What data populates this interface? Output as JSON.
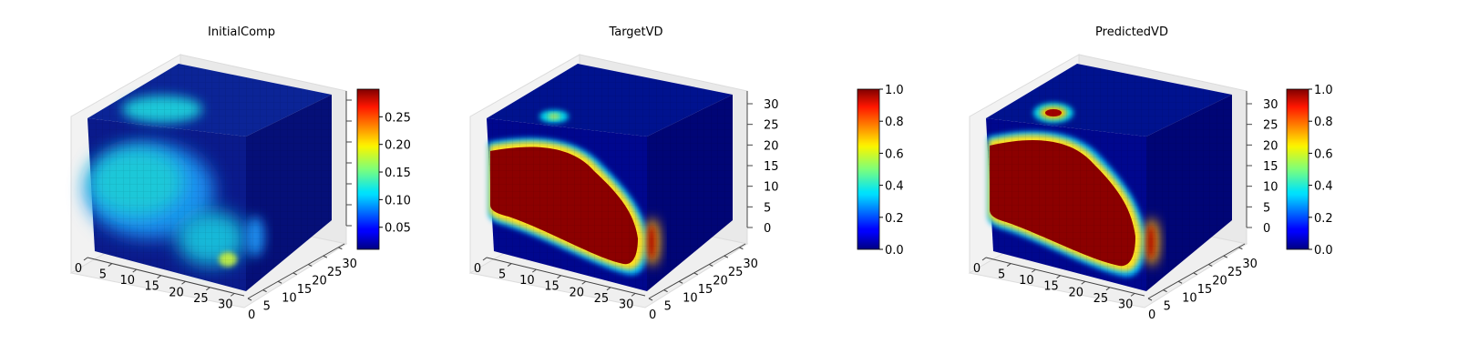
{
  "chart_data": [
    {
      "type": "heatmap",
      "title": "InitialComp",
      "axes_3d": true,
      "x_ticks": [
        0,
        5,
        10,
        15,
        20,
        25,
        30
      ],
      "y_ticks": [
        0,
        5,
        10,
        15,
        20,
        25,
        30
      ],
      "z_ticks": [],
      "colorbar": {
        "colormap": "jet",
        "range": [
          0.01,
          0.3
        ],
        "ticks": [
          "0.05",
          "0.10",
          "0.15",
          "0.20",
          "0.25"
        ]
      },
      "colors": {
        "background": "#0a1a8c",
        "blob_light": "#1ec8d8",
        "blob_mid": "#1f8ff0",
        "hot_spot": "#b8e84a"
      }
    },
    {
      "type": "heatmap",
      "title": "TargetVD",
      "axes_3d": true,
      "x_ticks": [
        0,
        5,
        10,
        15,
        20,
        25,
        30
      ],
      "y_ticks": [
        0,
        5,
        10,
        15,
        20,
        25,
        30
      ],
      "z_ticks": [
        0,
        5,
        10,
        15,
        20,
        25,
        30
      ],
      "colorbar": {
        "colormap": "jet",
        "range": [
          0.0,
          1.0
        ],
        "ticks": [
          "0.0",
          "0.2",
          "0.4",
          "0.6",
          "0.8",
          "1.0"
        ]
      },
      "colors": {
        "background": "#00078e",
        "core": "#8c0000",
        "edge": "#ffe020"
      }
    },
    {
      "type": "heatmap",
      "title": "PredictedVD",
      "axes_3d": true,
      "x_ticks": [
        0,
        5,
        10,
        15,
        20,
        25,
        30
      ],
      "y_ticks": [
        0,
        5,
        10,
        15,
        20,
        25,
        30
      ],
      "z_ticks": [
        0,
        5,
        10,
        15,
        20,
        25,
        30
      ],
      "colorbar": {
        "colormap": "jet",
        "range": [
          0.0,
          1.0
        ],
        "ticks": [
          "0.0",
          "0.2",
          "0.4",
          "0.6",
          "0.8",
          "1.0"
        ]
      },
      "colors": {
        "background": "#00078e",
        "core": "#8c0000",
        "edge": "#ffe020"
      }
    }
  ]
}
